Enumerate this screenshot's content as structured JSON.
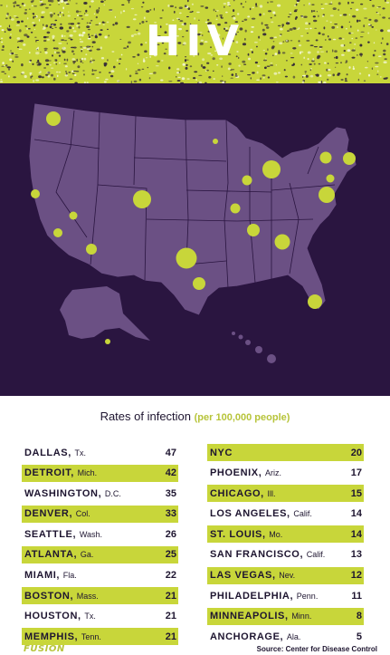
{
  "title": "HIV",
  "subtitle_main": "Rates of infection",
  "subtitle_note": "(per 100,000 people)",
  "logo": "FUSION",
  "source": "Source: Center for Disease Control",
  "colors": {
    "accent": "#c8d63a",
    "map_bg": "#2a1540",
    "land": "#6b5084",
    "text": "#1e1530"
  },
  "left_rows": [
    {
      "city": "DALLAS,",
      "state": "Tx.",
      "rate": "47",
      "highlight": false
    },
    {
      "city": "DETROIT,",
      "state": "Mich.",
      "rate": "42",
      "highlight": true
    },
    {
      "city": "WASHINGTON,",
      "state": "D.C.",
      "rate": "35",
      "highlight": false
    },
    {
      "city": "DENVER,",
      "state": "Col.",
      "rate": "33",
      "highlight": true
    },
    {
      "city": "SEATTLE,",
      "state": "Wash.",
      "rate": "26",
      "highlight": false
    },
    {
      "city": "ATLANTA,",
      "state": "Ga.",
      "rate": "25",
      "highlight": true
    },
    {
      "city": "MIAMI,",
      "state": "Fla.",
      "rate": "22",
      "highlight": false
    },
    {
      "city": "BOSTON,",
      "state": "Mass.",
      "rate": "21",
      "highlight": true
    },
    {
      "city": "HOUSTON,",
      "state": "Tx.",
      "rate": "21",
      "highlight": false
    },
    {
      "city": "MEMPHIS,",
      "state": "Tenn.",
      "rate": "21",
      "highlight": true
    }
  ],
  "right_rows": [
    {
      "city": "NYC",
      "state": "",
      "rate": "20",
      "highlight": true
    },
    {
      "city": "PHOENIX,",
      "state": "Ariz.",
      "rate": "17",
      "highlight": false
    },
    {
      "city": "CHICAGO,",
      "state": "Ill.",
      "rate": "15",
      "highlight": true
    },
    {
      "city": "LOS ANGELES,",
      "state": "Calif.",
      "rate": "14",
      "highlight": false
    },
    {
      "city": "ST. LOUIS,",
      "state": "Mo.",
      "rate": "14",
      "highlight": true
    },
    {
      "city": "SAN FRANCISCO,",
      "state": "Calif.",
      "rate": "13",
      "highlight": false
    },
    {
      "city": "LAS VEGAS,",
      "state": "Nev.",
      "rate": "12",
      "highlight": true
    },
    {
      "city": "PHILADELPHIA,",
      "state": "Penn.",
      "rate": "11",
      "highlight": false
    },
    {
      "city": "MINNEAPOLIS,",
      "state": "Minn.",
      "rate": "8",
      "highlight": true
    },
    {
      "city": "ANCHORAGE,",
      "state": "Ala.",
      "rate": "5",
      "highlight": false
    }
  ]
}
